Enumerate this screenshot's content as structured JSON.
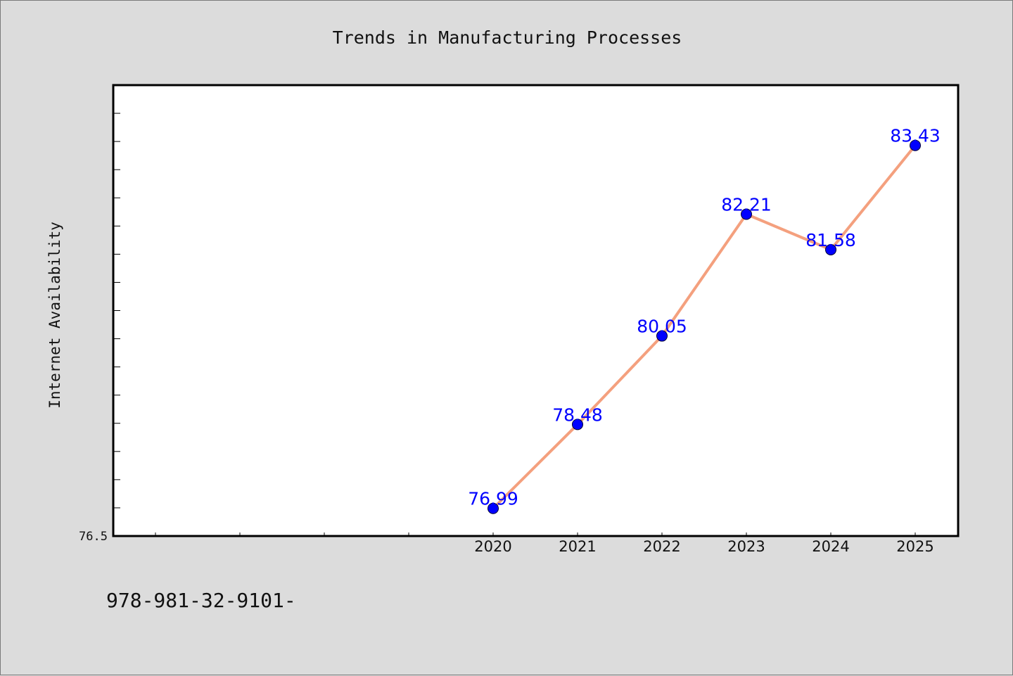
{
  "chart_data": {
    "type": "line",
    "title": "Trends in Manufacturing Processes",
    "xlabel": "",
    "ylabel": "Internet Availability",
    "categories": [
      "2020",
      "2021",
      "2022",
      "2023",
      "2024",
      "2025"
    ],
    "series": [
      {
        "values": [
          76.99,
          78.48,
          80.05,
          82.21,
          81.58,
          83.43
        ],
        "data_labels": [
          "76.99",
          "78.48",
          "80.05",
          "82.21",
          "81.58",
          "83.43"
        ],
        "line_color": "#f4a07e",
        "marker_color": "#0000ff"
      }
    ],
    "y_tick_labels": [
      "76.5"
    ],
    "ylim": [
      76.5,
      84.5
    ],
    "x_axis_slots": 10,
    "x_categories_start_slot": 4,
    "grid": false,
    "legend": "none",
    "data_label_color": "#0000ff",
    "background_color": "#dcdcdc",
    "plot_background_color": "#ffffff"
  },
  "footnote": "978-981-32-9101-"
}
